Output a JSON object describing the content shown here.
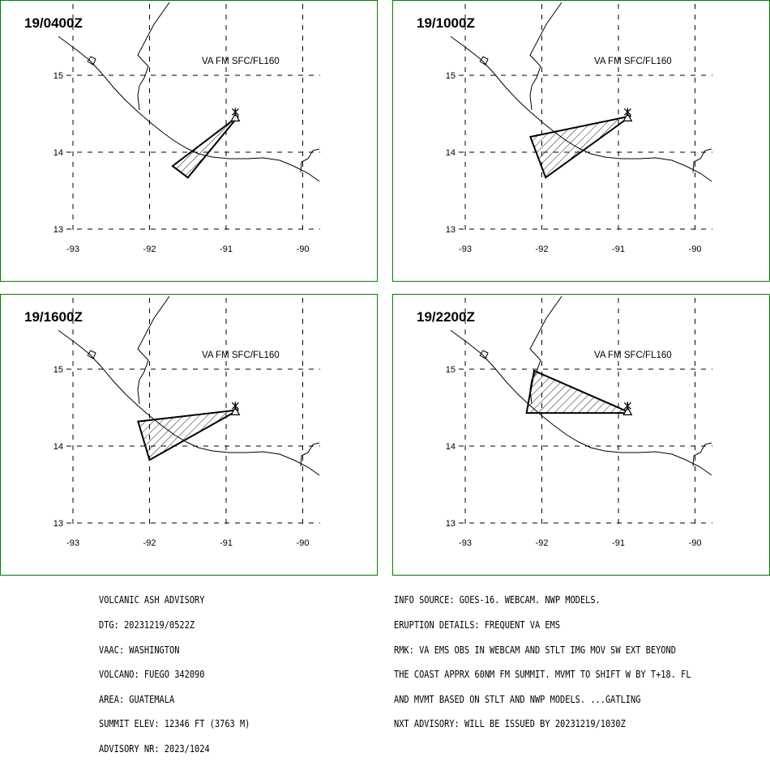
{
  "panels": [
    {
      "time": "19/0400Z",
      "label": "VA FM SFC/FL160",
      "polygon": [
        [
          -90.84,
          14.47
        ],
        [
          -91.5,
          13.67
        ],
        [
          -91.7,
          13.82
        ]
      ]
    },
    {
      "time": "19/1000Z",
      "label": "VA FM SFC/FL160",
      "polygon": [
        [
          -90.84,
          14.47
        ],
        [
          -92.15,
          14.2
        ],
        [
          -91.95,
          13.67
        ]
      ]
    },
    {
      "time": "19/1600Z",
      "label": "VA FM SFC/FL160",
      "polygon": [
        [
          -90.84,
          14.47
        ],
        [
          -92.15,
          14.32
        ],
        [
          -92.0,
          13.82
        ]
      ]
    },
    {
      "time": "19/2200Z",
      "label": "VA FM SFC/FL160",
      "polygon": [
        [
          -90.84,
          14.43
        ],
        [
          -92.1,
          14.98
        ],
        [
          -92.2,
          14.43
        ]
      ]
    }
  ],
  "axes": {
    "lon_ticks": [
      -93,
      -92,
      -91,
      -90
    ],
    "lat_ticks": [
      15,
      14,
      13
    ],
    "lon_labels": [
      "-93",
      "-92",
      "-91",
      "-90"
    ],
    "lat_labels": [
      "15",
      "14",
      "13"
    ]
  },
  "volcano": {
    "name": "FUEGO",
    "lon": -90.88,
    "lat": 14.47,
    "symbol": "volcano-triangle-icon"
  },
  "advisory_left": [
    "VOLCANIC ASH ADVISORY",
    "DTG: 20231219/0522Z",
    "VAAC: WASHINGTON",
    "VOLCANO: FUEGO 342090",
    "AREA: GUATEMALA",
    "SUMMIT ELEV: 12346 FT (3763 M)",
    "ADVISORY NR: 2023/1024"
  ],
  "advisory_right": [
    "INFO SOURCE: GOES-16. WEBCAM. NWP MODELS.",
    "ERUPTION DETAILS: FREQUENT VA EMS",
    "RMK: VA EMS OBS IN WEBCAM AND STLT IMG MOV SW EXT BEYOND",
    "THE COAST APPRX 60NM FM SUMMIT. MVMT TO SHIFT W BY T+18. FL",
    "AND MVMT BASED ON STLT AND NWP MODELS. ...GATLING",
    "NXT ADVISORY: WILL BE ISSUED BY 20231219/1030Z"
  ],
  "colors": {
    "frame": "#008000",
    "lines": "#000000",
    "background": "#ffffff"
  }
}
